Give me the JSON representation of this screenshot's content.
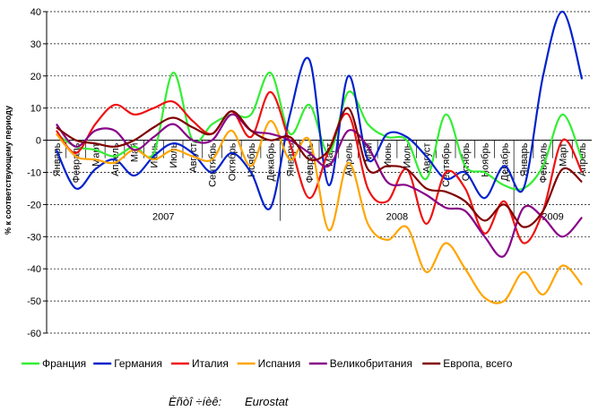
{
  "chart_data": {
    "type": "line",
    "y_axis_label": "% к соответствующему периоду",
    "categories": [
      "Январь",
      "Февраль",
      "Март",
      "Апрель",
      "Май",
      "Июнь",
      "Июль",
      "Август",
      "Сентябрь",
      "Октябрь",
      "Ноябрь",
      "Декабрь",
      "Январь",
      "Февраль",
      "Март",
      "Апрель",
      "Май",
      "Июнь",
      "Июль",
      "Август",
      "Сентябрь",
      "Октябрь",
      "Ноябрь",
      "Декабрь",
      "Январь",
      "Февраль",
      "Март",
      "Апрель"
    ],
    "year_labels": [
      "2007",
      "2008",
      "2009"
    ],
    "ylim": [
      -60,
      40
    ],
    "yticks": [
      -60,
      -50,
      -40,
      -30,
      -20,
      -10,
      0,
      10,
      20,
      30,
      40
    ],
    "grid": true,
    "legend": "bottom",
    "series": [
      {
        "name": "Франция",
        "color": "#33ee33",
        "values": [
          2,
          -2,
          -3,
          -5,
          -2,
          -4,
          21,
          0,
          5,
          8,
          8,
          21,
          2,
          11,
          -4,
          15,
          5,
          1,
          0,
          -12,
          8,
          -8,
          -10,
          -14,
          -15,
          -8,
          8,
          -6
        ]
      },
      {
        "name": "Германия",
        "color": "#0022cc",
        "values": [
          -3,
          -15,
          -9,
          -6,
          -11,
          -5,
          -1,
          -4,
          -10,
          -4,
          -10,
          -21,
          8,
          25,
          -14,
          20,
          -6,
          2,
          1,
          -5,
          -12,
          -10,
          -18,
          -8,
          -15,
          20,
          40,
          19
        ]
      },
      {
        "name": "Италия",
        "color": "#ee1111",
        "values": [
          3,
          -4,
          5,
          11,
          8,
          10,
          12,
          6,
          2,
          9,
          1,
          15,
          -1,
          -18,
          -3,
          8,
          -15,
          -19,
          -9,
          -26,
          -10,
          -15,
          -29,
          -19,
          -32,
          -22,
          0,
          -10
        ]
      },
      {
        "name": "Испания",
        "color": "#ffa500",
        "values": [
          2,
          -5,
          -6,
          -7,
          -3,
          -6,
          -3,
          -5,
          -6,
          3,
          -8,
          6,
          -6,
          0,
          -28,
          -7,
          -26,
          -31,
          -27,
          -41,
          -32,
          -40,
          -49,
          -50,
          -41,
          -48,
          -39,
          -45
        ]
      },
      {
        "name": "Великобритания",
        "color": "#880088",
        "values": [
          5,
          -2,
          3,
          3,
          -3,
          1,
          5,
          0,
          0,
          8,
          3,
          2,
          0,
          -4,
          -8,
          3,
          -2,
          -13,
          -14,
          -17,
          -21,
          -22,
          -30,
          -36,
          -21,
          -24,
          -30,
          -24
        ]
      },
      {
        "name": "Европа, всего",
        "color": "#800000",
        "values": [
          4,
          0,
          -1,
          -2,
          0,
          4,
          7,
          4,
          2,
          9,
          3,
          0,
          1,
          -6,
          -3,
          10,
          -9,
          -8,
          -9,
          -15,
          -16,
          -19,
          -25,
          -20,
          -27,
          -22,
          -9,
          -13
        ]
      }
    ],
    "source_label": "Èñòî ÷íèê:",
    "source": "Eurostat"
  }
}
